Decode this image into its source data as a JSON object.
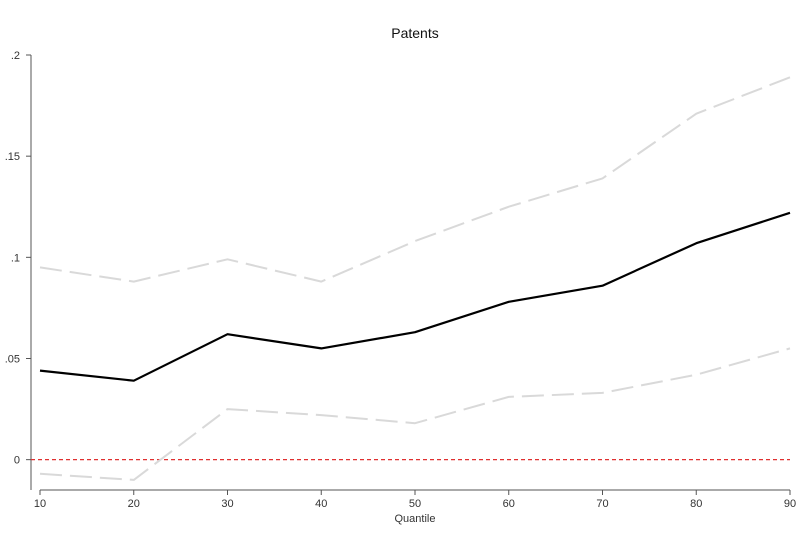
{
  "chart_data": {
    "type": "line",
    "title": "Patents",
    "xlabel": "Quantile",
    "ylabel": "",
    "x": [
      10,
      20,
      30,
      40,
      50,
      60,
      70,
      80,
      90
    ],
    "xlim": [
      10,
      90
    ],
    "ylim": [
      -0.015,
      0.2
    ],
    "xticks": [
      10,
      20,
      30,
      40,
      50,
      60,
      70,
      80,
      90
    ],
    "xtick_labels": [
      "10",
      "20",
      "30",
      "40",
      "50",
      "60",
      "70",
      "80",
      "90"
    ],
    "yticks": [
      0,
      0.05,
      0.1,
      0.15,
      0.2
    ],
    "ytick_labels": [
      "0",
      ".05",
      ".1",
      ".15",
      ".2"
    ],
    "grid": false,
    "series": [
      {
        "role": "estimate",
        "color": "#000000",
        "style": "solid",
        "values": [
          0.044,
          0.039,
          0.062,
          0.055,
          0.063,
          0.078,
          0.086,
          0.107,
          0.122
        ]
      },
      {
        "role": "upper_bound",
        "color": "#d9d9d9",
        "style": "dashed",
        "values": [
          0.095,
          0.088,
          0.099,
          0.088,
          0.108,
          0.125,
          0.139,
          0.171,
          0.189
        ]
      },
      {
        "role": "lower_bound",
        "color": "#d9d9d9",
        "style": "dashed",
        "values": [
          -0.007,
          -0.01,
          0.025,
          0.022,
          0.018,
          0.031,
          0.033,
          0.042,
          0.055
        ]
      }
    ],
    "reference_line": {
      "y": 0,
      "color": "#e03030",
      "style": "dashed"
    }
  }
}
